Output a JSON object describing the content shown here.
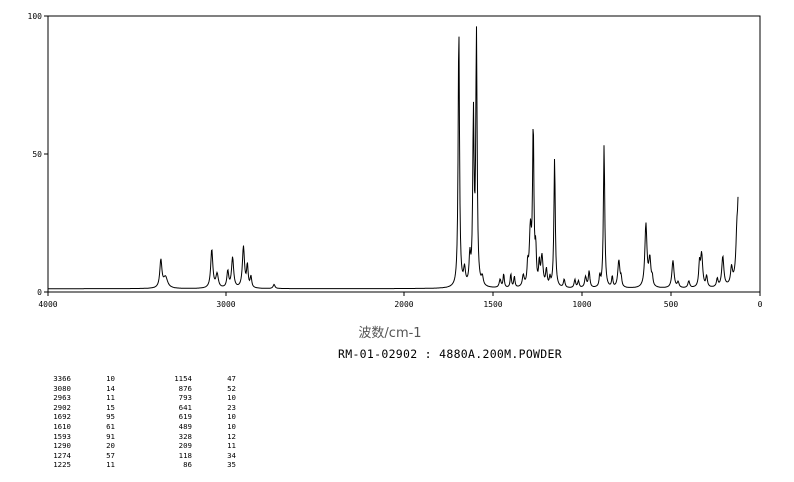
{
  "chart_data": {
    "type": "line",
    "title": "",
    "xlabel": "波数/cm-1",
    "ylabel": "",
    "xlim": [
      4000,
      0
    ],
    "ylim": [
      0,
      100
    ],
    "x_ticks": [
      "4000",
      "3000",
      "2000",
      "1500",
      "1000",
      "500",
      "0"
    ],
    "x_tick_values": [
      4000,
      3000,
      2000,
      1500,
      1000,
      500,
      0
    ],
    "y_ticks": [
      "100",
      "50",
      "0"
    ],
    "y_tick_values": [
      100,
      50,
      0
    ],
    "grid": false,
    "series": [
      {
        "peaks": [
          [
            3366,
            10
          ],
          [
            3080,
            14
          ],
          [
            2963,
            11
          ],
          [
            2902,
            15
          ],
          [
            1692,
            95
          ],
          [
            1610,
            61
          ],
          [
            1593,
            91
          ],
          [
            1290,
            20
          ],
          [
            1274,
            57
          ],
          [
            1225,
            11
          ],
          [
            1154,
            47
          ],
          [
            876,
            52
          ],
          [
            793,
            10
          ],
          [
            641,
            23
          ],
          [
            619,
            10
          ],
          [
            489,
            10
          ],
          [
            328,
            12
          ],
          [
            209,
            11
          ],
          [
            118,
            34
          ],
          [
            86,
            35
          ]
        ]
      }
    ],
    "baseline": 1.2
  },
  "spectrum": {
    "sample_label": "RM-01-02902 : 4880A.200M.POWDER"
  },
  "peak_table": {
    "left": [
      [
        "3366",
        "10"
      ],
      [
        "3080",
        "14"
      ],
      [
        "2963",
        "11"
      ],
      [
        "2902",
        "15"
      ],
      [
        "1692",
        "95"
      ],
      [
        "1610",
        "61"
      ],
      [
        "1593",
        "91"
      ],
      [
        "1290",
        "20"
      ],
      [
        "1274",
        "57"
      ],
      [
        "1225",
        "11"
      ]
    ],
    "right": [
      [
        "1154",
        "47"
      ],
      [
        "876",
        "52"
      ],
      [
        "793",
        "10"
      ],
      [
        "641",
        "23"
      ],
      [
        "619",
        "10"
      ],
      [
        "489",
        "10"
      ],
      [
        "328",
        "12"
      ],
      [
        "209",
        "11"
      ],
      [
        "118",
        "34"
      ],
      [
        "86",
        "35"
      ]
    ]
  }
}
